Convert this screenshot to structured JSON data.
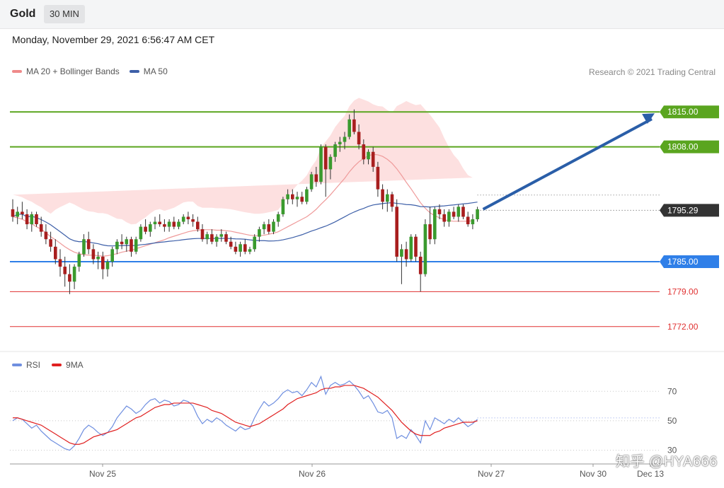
{
  "header": {
    "instrument": "Gold",
    "timeframe": "30 MIN"
  },
  "datetime": "Monday, November 29, 2021 6:56:47 AM CET",
  "legend": {
    "items": [
      {
        "label": "MA 20 + Bollinger Bands",
        "color": "#ef8a8a"
      },
      {
        "label": "MA 50",
        "color": "#3d5fa8"
      }
    ],
    "credit": "Research © 2021 Trading Central"
  },
  "rsi_legend": {
    "items": [
      {
        "label": "RSI",
        "color": "#6f8fe0"
      },
      {
        "label": "9MA",
        "color": "#e02020"
      }
    ]
  },
  "watermark": "知乎 @HYA666",
  "chart_data": [
    {
      "type": "candlestick",
      "ylim": [
        1768.0,
        1819.0
      ],
      "current_price": {
        "value": 1795.29,
        "label": "1795.29"
      },
      "levels": [
        {
          "value": 1815.0,
          "label": "1815.00",
          "style": "resistance",
          "color": "#5aa51f"
        },
        {
          "value": 1808.0,
          "label": "1808.00",
          "style": "resistance",
          "color": "#5aa51f"
        },
        {
          "value": 1785.0,
          "label": "1785.00",
          "style": "pivot",
          "color": "#2f7fe8"
        },
        {
          "value": 1779.0,
          "label": "1779.00",
          "style": "support",
          "color": "#e03030"
        },
        {
          "value": 1772.0,
          "label": "1772.00",
          "style": "support",
          "color": "#e03030"
        }
      ],
      "arrow": {
        "from": 1795.5,
        "to": 1815.0,
        "direction": "up",
        "color": "#2a5ea8"
      },
      "x_labels": [
        "Nov 25",
        "Nov 26",
        "Nov 27",
        "Nov 30",
        "Dec 13"
      ],
      "candles": [
        [
          1795.5,
          1797.5,
          1793.0,
          1794.0
        ],
        [
          1794.0,
          1796.0,
          1792.5,
          1795.0
        ],
        [
          1795.0,
          1797.0,
          1793.5,
          1794.5
        ],
        [
          1794.5,
          1795.5,
          1791.5,
          1792.5
        ],
        [
          1792.5,
          1795.0,
          1791.0,
          1794.5
        ],
        [
          1794.5,
          1795.0,
          1792.0,
          1792.5
        ],
        [
          1792.5,
          1794.0,
          1790.0,
          1791.0
        ],
        [
          1791.0,
          1792.5,
          1788.5,
          1789.5
        ],
        [
          1789.5,
          1791.0,
          1787.0,
          1788.0
        ],
        [
          1788.0,
          1789.5,
          1784.5,
          1785.5
        ],
        [
          1785.5,
          1787.5,
          1782.0,
          1784.0
        ],
        [
          1784.0,
          1786.0,
          1780.0,
          1782.5
        ],
        [
          1782.5,
          1784.5,
          1778.5,
          1781.0
        ],
        [
          1781.0,
          1784.5,
          1779.5,
          1784.0
        ],
        [
          1784.0,
          1787.0,
          1783.0,
          1786.5
        ],
        [
          1786.5,
          1790.5,
          1786.0,
          1789.5
        ],
        [
          1789.5,
          1791.0,
          1786.5,
          1787.5
        ],
        [
          1787.5,
          1788.5,
          1784.5,
          1785.5
        ],
        [
          1785.5,
          1787.0,
          1783.5,
          1786.0
        ],
        [
          1786.0,
          1787.0,
          1781.5,
          1783.5
        ],
        [
          1783.5,
          1785.5,
          1782.0,
          1785.0
        ],
        [
          1785.0,
          1788.0,
          1784.0,
          1787.5
        ],
        [
          1787.5,
          1789.5,
          1786.5,
          1789.0
        ],
        [
          1789.0,
          1790.5,
          1787.5,
          1788.5
        ],
        [
          1788.5,
          1790.0,
          1787.0,
          1789.5
        ],
        [
          1789.5,
          1790.0,
          1786.0,
          1787.0
        ],
        [
          1787.0,
          1790.0,
          1786.5,
          1789.5
        ],
        [
          1789.5,
          1792.5,
          1789.0,
          1792.0
        ],
        [
          1792.0,
          1793.5,
          1790.5,
          1791.0
        ],
        [
          1791.0,
          1793.0,
          1790.0,
          1792.5
        ],
        [
          1792.5,
          1794.0,
          1791.5,
          1793.0
        ],
        [
          1793.0,
          1794.5,
          1792.0,
          1792.5
        ],
        [
          1792.5,
          1793.5,
          1791.0,
          1792.0
        ],
        [
          1792.0,
          1793.5,
          1791.0,
          1793.0
        ],
        [
          1793.0,
          1794.0,
          1791.5,
          1792.0
        ],
        [
          1792.0,
          1793.5,
          1791.5,
          1793.0
        ],
        [
          1793.0,
          1794.5,
          1792.5,
          1794.0
        ],
        [
          1794.0,
          1795.0,
          1792.5,
          1793.5
        ],
        [
          1793.5,
          1794.5,
          1792.0,
          1793.0
        ],
        [
          1793.0,
          1794.0,
          1791.0,
          1791.5
        ],
        [
          1791.5,
          1792.5,
          1789.0,
          1789.5
        ],
        [
          1789.5,
          1791.0,
          1788.5,
          1790.5
        ],
        [
          1790.5,
          1791.5,
          1788.5,
          1789.0
        ],
        [
          1789.0,
          1790.5,
          1788.0,
          1790.0
        ],
        [
          1790.0,
          1791.5,
          1789.0,
          1790.5
        ],
        [
          1790.5,
          1791.0,
          1788.5,
          1789.0
        ],
        [
          1789.0,
          1790.0,
          1787.5,
          1788.0
        ],
        [
          1788.0,
          1789.0,
          1786.5,
          1787.0
        ],
        [
          1787.0,
          1789.0,
          1786.0,
          1788.5
        ],
        [
          1788.5,
          1789.5,
          1786.5,
          1787.0
        ],
        [
          1787.0,
          1788.0,
          1786.5,
          1787.5
        ],
        [
          1787.5,
          1790.5,
          1787.0,
          1790.0
        ],
        [
          1790.0,
          1792.0,
          1789.0,
          1791.5
        ],
        [
          1791.5,
          1793.0,
          1790.5,
          1792.5
        ],
        [
          1792.5,
          1793.5,
          1790.5,
          1791.0
        ],
        [
          1791.0,
          1793.5,
          1790.5,
          1793.0
        ],
        [
          1793.0,
          1795.0,
          1792.0,
          1794.5
        ],
        [
          1794.5,
          1798.0,
          1794.0,
          1797.5
        ],
        [
          1797.5,
          1799.5,
          1796.5,
          1798.5
        ],
        [
          1798.5,
          1799.5,
          1796.5,
          1797.5
        ],
        [
          1797.5,
          1799.0,
          1796.0,
          1798.0
        ],
        [
          1798.0,
          1799.0,
          1796.5,
          1797.0
        ],
        [
          1797.0,
          1800.0,
          1796.5,
          1799.5
        ],
        [
          1799.5,
          1803.0,
          1799.0,
          1802.5
        ],
        [
          1802.5,
          1804.0,
          1800.0,
          1801.0
        ],
        [
          1801.0,
          1808.5,
          1800.5,
          1808.0
        ],
        [
          1808.0,
          1808.5,
          1798.0,
          1803.5
        ],
        [
          1803.5,
          1806.5,
          1801.5,
          1806.0
        ],
        [
          1806.0,
          1809.0,
          1805.0,
          1808.5
        ],
        [
          1808.5,
          1810.0,
          1807.0,
          1809.0
        ],
        [
          1809.0,
          1811.0,
          1807.5,
          1810.0
        ],
        [
          1810.0,
          1814.5,
          1809.5,
          1813.5
        ],
        [
          1813.5,
          1815.5,
          1810.5,
          1811.0
        ],
        [
          1811.0,
          1812.5,
          1807.5,
          1808.5
        ],
        [
          1808.5,
          1809.5,
          1804.5,
          1805.5
        ],
        [
          1805.5,
          1807.5,
          1804.5,
          1807.0
        ],
        [
          1807.0,
          1808.0,
          1803.0,
          1804.0
        ],
        [
          1804.0,
          1805.0,
          1798.0,
          1799.5
        ],
        [
          1799.5,
          1800.5,
          1795.5,
          1797.0
        ],
        [
          1797.0,
          1799.5,
          1795.0,
          1798.5
        ],
        [
          1798.5,
          1799.0,
          1795.0,
          1796.0
        ],
        [
          1796.0,
          1797.5,
          1785.0,
          1786.0
        ],
        [
          1786.0,
          1788.5,
          1780.5,
          1787.5
        ],
        [
          1787.5,
          1789.0,
          1784.0,
          1785.5
        ],
        [
          1785.5,
          1790.5,
          1785.0,
          1790.0
        ],
        [
          1790.0,
          1790.5,
          1785.0,
          1786.0
        ],
        [
          1786.0,
          1787.0,
          1779.0,
          1782.5
        ],
        [
          1782.5,
          1793.5,
          1782.0,
          1792.5
        ],
        [
          1792.5,
          1796.0,
          1788.5,
          1789.5
        ],
        [
          1789.5,
          1796.0,
          1788.5,
          1795.5
        ],
        [
          1795.5,
          1796.5,
          1793.5,
          1794.5
        ],
        [
          1794.5,
          1795.5,
          1792.0,
          1793.0
        ],
        [
          1793.0,
          1795.5,
          1792.0,
          1795.0
        ],
        [
          1795.0,
          1796.0,
          1793.5,
          1794.0
        ],
        [
          1794.0,
          1796.5,
          1793.0,
          1796.0
        ],
        [
          1796.0,
          1796.5,
          1793.5,
          1794.0
        ],
        [
          1794.0,
          1795.0,
          1792.0,
          1792.5
        ],
        [
          1792.5,
          1794.5,
          1791.5,
          1793.5
        ],
        [
          1793.5,
          1796.0,
          1793.0,
          1795.5
        ]
      ],
      "ma20": [
        1794.0,
        1793.8,
        1793.5,
        1793.0,
        1792.6,
        1792.0,
        1791.5,
        1790.8,
        1790.0,
        1789.4,
        1788.7,
        1788.0,
        1787.4,
        1786.9,
        1786.6,
        1786.4,
        1786.3,
        1786.3,
        1786.2,
        1786.1,
        1786.2,
        1786.4,
        1786.6,
        1786.9,
        1787.1,
        1787.3,
        1787.6,
        1787.9,
        1788.2,
        1788.5,
        1788.8,
        1789.1,
        1789.4,
        1789.8,
        1790.1,
        1790.4,
        1790.7,
        1791.0,
        1791.2,
        1791.3,
        1791.4,
        1791.4,
        1791.4,
        1791.3,
        1791.3,
        1791.2,
        1791.1,
        1790.9,
        1790.7,
        1790.5,
        1790.3,
        1790.2,
        1790.2,
        1790.3,
        1790.5,
        1790.7,
        1791.0,
        1791.5,
        1792.0,
        1792.5,
        1793.0,
        1793.5,
        1794.0,
        1794.7,
        1795.5,
        1796.5,
        1797.4,
        1798.4,
        1799.5,
        1800.6,
        1801.7,
        1803.0,
        1804.1,
        1805.0,
        1805.7,
        1806.2,
        1806.5,
        1806.4,
        1806.1,
        1805.5,
        1804.7,
        1803.6,
        1802.3,
        1800.9,
        1799.6,
        1798.2,
        1796.8,
        1795.7,
        1794.8,
        1794.2,
        1793.8,
        1793.4,
        1793.2,
        1793.1,
        1793.1,
        1793.1,
        1793.1,
        1793.2
      ]
    },
    {
      "type": "line",
      "ylim": [
        25,
        85
      ],
      "y_ticks": [
        70,
        50,
        30
      ],
      "series": [
        {
          "name": "RSI",
          "values": [
            50,
            52,
            51,
            48,
            45,
            47,
            43,
            40,
            37,
            35,
            33,
            31,
            30,
            33,
            38,
            44,
            47,
            45,
            42,
            40,
            42,
            46,
            52,
            56,
            60,
            58,
            55,
            57,
            61,
            64,
            65,
            62,
            64,
            63,
            60,
            61,
            64,
            63,
            60,
            53,
            48,
            51,
            49,
            52,
            50,
            47,
            45,
            43,
            46,
            44,
            45,
            52,
            58,
            63,
            60,
            62,
            65,
            69,
            71,
            69,
            70,
            67,
            71,
            76,
            73,
            80,
            68,
            74,
            76,
            74,
            75,
            77,
            74,
            70,
            65,
            67,
            62,
            56,
            55,
            57,
            52,
            38,
            40,
            38,
            44,
            40,
            35,
            50,
            44,
            52,
            50,
            48,
            51,
            49,
            52,
            49,
            46,
            48,
            51
          ]
        },
        {
          "name": "9MA",
          "values": [
            52,
            52,
            51,
            50,
            49,
            48,
            47,
            45,
            43,
            41,
            39,
            37,
            35,
            34,
            34,
            35,
            37,
            39,
            40,
            41,
            42,
            43,
            44,
            46,
            48,
            50,
            52,
            53,
            55,
            57,
            59,
            60,
            61,
            61,
            62,
            62,
            62,
            62,
            62,
            61,
            60,
            59,
            57,
            56,
            55,
            53,
            51,
            49,
            48,
            47,
            46,
            47,
            48,
            50,
            52,
            54,
            56,
            58,
            61,
            63,
            65,
            66,
            67,
            68,
            69,
            71,
            72,
            72,
            73,
            73,
            74,
            74,
            74,
            73,
            72,
            70,
            68,
            66,
            63,
            60,
            57,
            53,
            49,
            46,
            43,
            41,
            40,
            40,
            40,
            42,
            43,
            45,
            46,
            47,
            48,
            49,
            49,
            49,
            50
          ]
        }
      ]
    }
  ]
}
